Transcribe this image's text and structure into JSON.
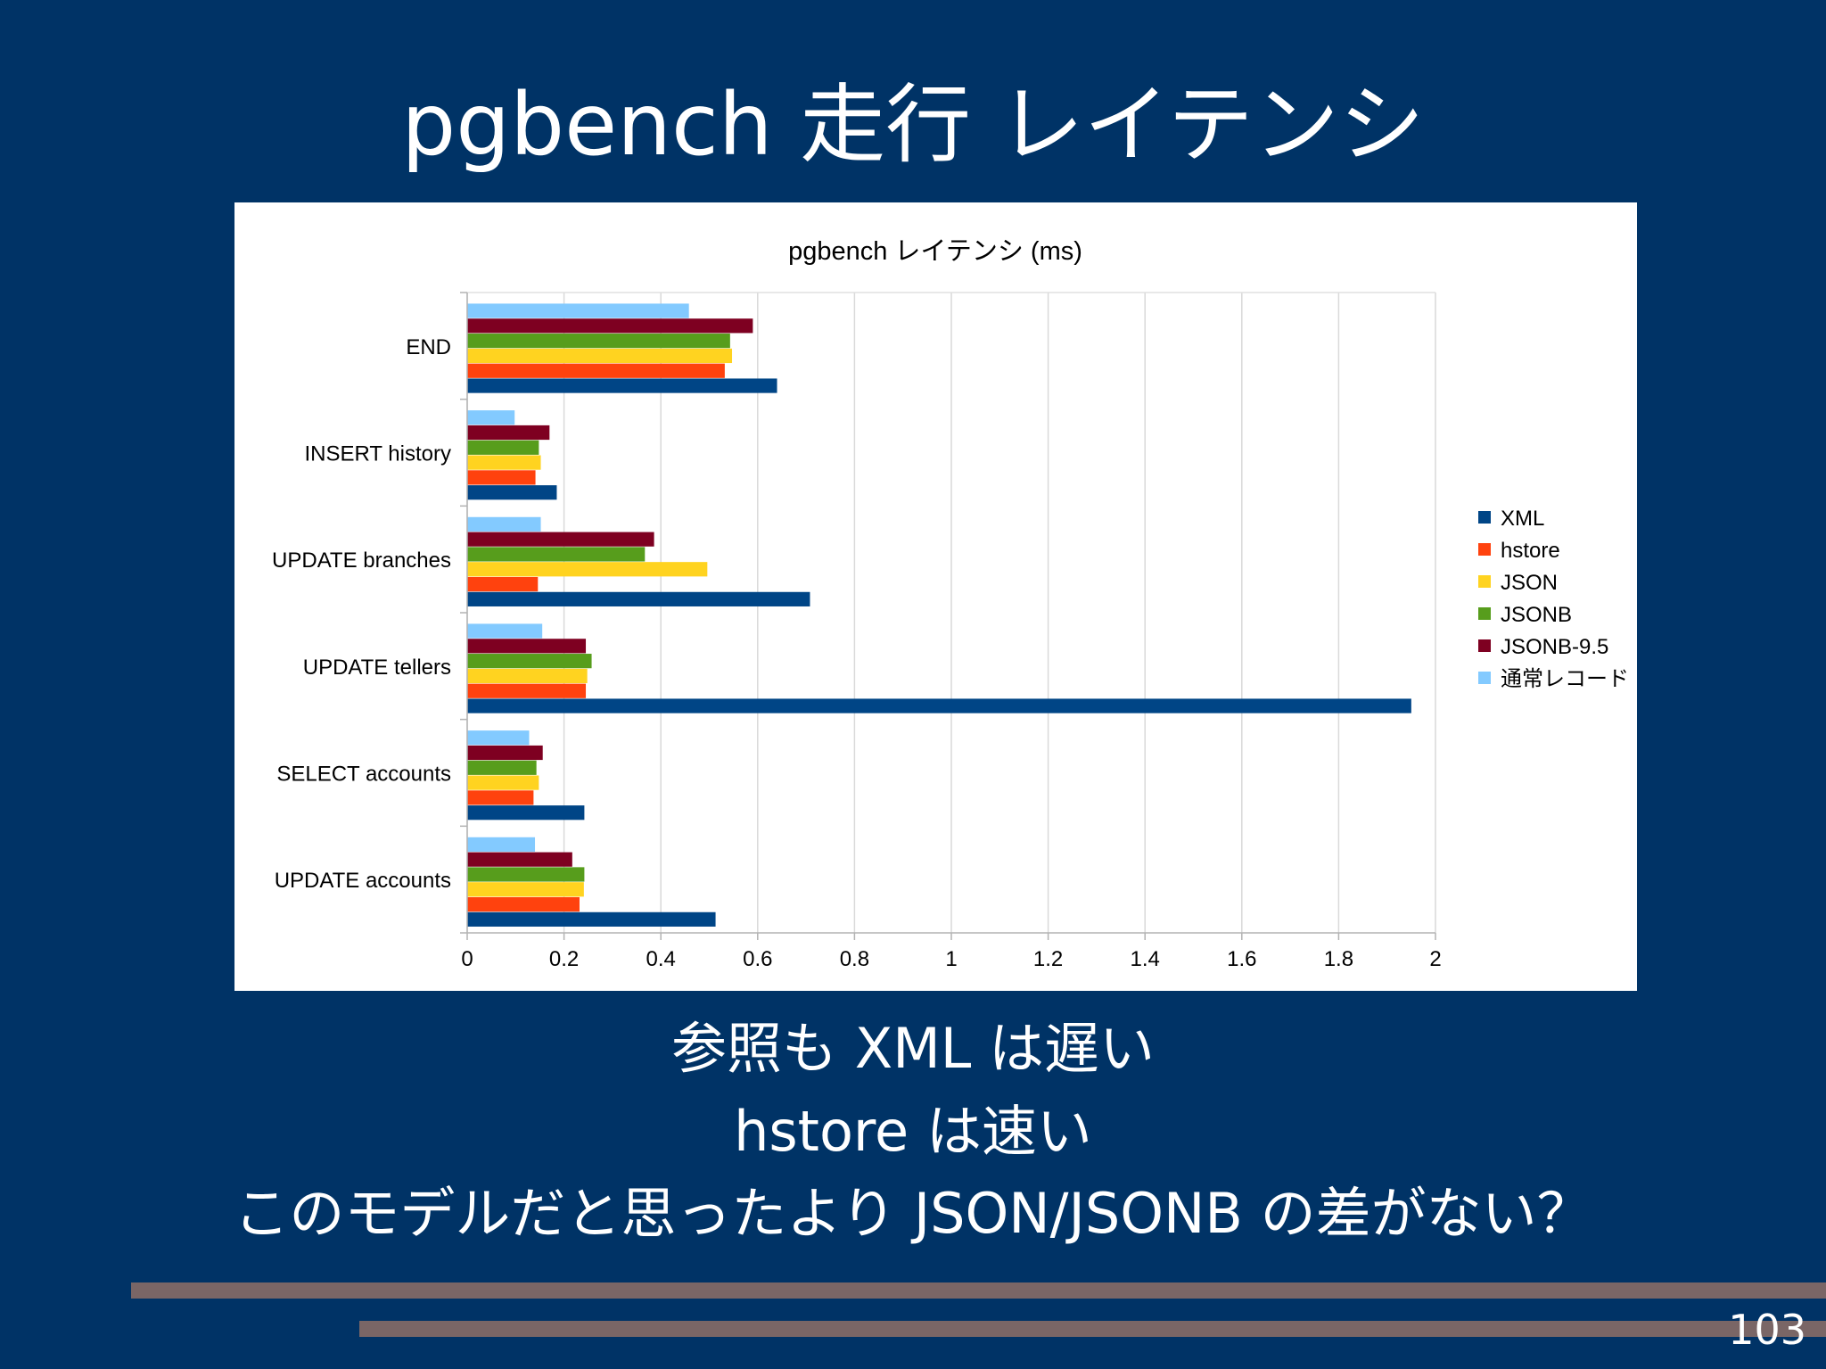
{
  "slide": {
    "title": "pgbench 走行 レイテンシ",
    "captions": [
      "参照も XML は遅い",
      "hstore は速い",
      "このモデルだと思ったより JSON/JSONB の差がない？"
    ],
    "page_number": "103"
  },
  "colors": {
    "background": "#003366",
    "deco_bar": "#7a6666"
  },
  "chart_data": {
    "type": "bar",
    "orientation": "horizontal",
    "title": "pgbench レイテンシ (ms)",
    "xlabel": "",
    "ylabel": "",
    "xlim": [
      0,
      2
    ],
    "xticks": [
      "0",
      "0.2",
      "0.4",
      "0.6",
      "0.8",
      "1",
      "1.2",
      "1.4",
      "1.6",
      "1.8",
      "2"
    ],
    "grid": true,
    "legend_position": "right",
    "categories": [
      "END",
      "INSERT history",
      "UPDATE branches",
      "UPDATE tellers",
      "SELECT accounts",
      "UPDATE accounts"
    ],
    "series": [
      {
        "name": "XML",
        "color": "#004586",
        "values": [
          0.64,
          0.185,
          0.708,
          1.95,
          0.242,
          0.513
        ]
      },
      {
        "name": "hstore",
        "color": "#ff420e",
        "values": [
          0.532,
          0.141,
          0.146,
          0.245,
          0.137,
          0.232
        ]
      },
      {
        "name": "JSON",
        "color": "#ffd320",
        "values": [
          0.547,
          0.152,
          0.496,
          0.248,
          0.148,
          0.241
        ]
      },
      {
        "name": "JSONB",
        "color": "#579d1c",
        "values": [
          0.543,
          0.148,
          0.367,
          0.257,
          0.143,
          0.242
        ]
      },
      {
        "name": "JSONB-9.5",
        "color": "#7e0021",
        "values": [
          0.59,
          0.17,
          0.386,
          0.245,
          0.156,
          0.217
        ]
      },
      {
        "name": "通常レコード",
        "color": "#83caff",
        "values": [
          0.458,
          0.098,
          0.152,
          0.155,
          0.128,
          0.14
        ]
      }
    ]
  }
}
